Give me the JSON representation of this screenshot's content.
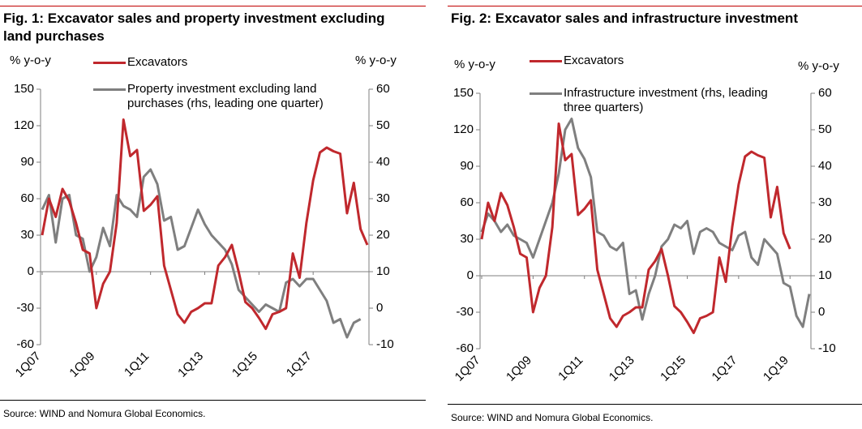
{
  "chart_data": [
    {
      "type": "line",
      "title": "Fig. 1: Excavator sales and property investment excluding land purchases",
      "y_label": "% y-o-y",
      "y2_label": "% y-o-y",
      "categories": [
        "1Q07",
        null,
        null,
        null,
        null,
        null,
        null,
        null,
        "1Q09",
        null,
        null,
        null,
        null,
        null,
        null,
        null,
        "1Q11",
        null,
        null,
        null,
        null,
        null,
        null,
        null,
        "1Q13",
        null,
        null,
        null,
        null,
        null,
        null,
        null,
        "1Q15",
        null,
        null,
        null,
        null,
        null,
        null,
        null,
        "1Q17",
        null,
        null,
        null,
        null,
        null,
        null,
        null,
        null
      ],
      "series": [
        {
          "name": "Excavators",
          "color": "#c0282d",
          "values": [
            30,
            60,
            45,
            68,
            58,
            40,
            18,
            15,
            -30,
            -10,
            0,
            40,
            125,
            95,
            100,
            50,
            55,
            62,
            5,
            -15,
            -35,
            -42,
            -33,
            -30,
            -26,
            -26,
            5,
            12,
            22,
            0,
            -25,
            -30,
            -38,
            -47,
            -35,
            -33,
            -30,
            15,
            -5,
            40,
            75,
            98,
            102,
            99,
            97,
            48,
            73,
            35,
            22
          ]
        },
        {
          "name": "Property investment excluding land purchases (rhs, leading one quarter)",
          "color": "#7f7f7f",
          "axis": "y2",
          "values": [
            27,
            31,
            18,
            30,
            31,
            20,
            19,
            10,
            14,
            22,
            17,
            31,
            28,
            27,
            25,
            36,
            38,
            34,
            24,
            25,
            16,
            17,
            22,
            27,
            23,
            20,
            18,
            16,
            12,
            5,
            3,
            1,
            -1,
            1,
            0,
            -1,
            7,
            8,
            6,
            8,
            8,
            5,
            2,
            -4,
            -3,
            -8,
            -4,
            -3,
            null
          ]
        }
      ],
      "ylim": [
        -60,
        150
      ],
      "yticks": [
        -60,
        -30,
        0,
        30,
        60,
        90,
        120,
        150
      ],
      "y2lim": [
        -10,
        60
      ],
      "y2ticks": [
        -10,
        0,
        10,
        20,
        30,
        40,
        50,
        60
      ],
      "source": "Source: WIND and Nomura Global Economics."
    },
    {
      "type": "line",
      "title": "Fig. 2: Excavator sales and infrastructure investment",
      "y_label": "% y-o-y",
      "y2_label": "% y-o-y",
      "categories": [
        "1Q07",
        null,
        null,
        null,
        null,
        null,
        null,
        null,
        "1Q09",
        null,
        null,
        null,
        null,
        null,
        null,
        null,
        "1Q11",
        null,
        null,
        null,
        null,
        null,
        null,
        null,
        "1Q13",
        null,
        null,
        null,
        null,
        null,
        null,
        null,
        "1Q15",
        null,
        null,
        null,
        null,
        null,
        null,
        null,
        "1Q17",
        null,
        null,
        null,
        null,
        null,
        null,
        null,
        "1Q19",
        null,
        null,
        null
      ],
      "series": [
        {
          "name": "Excavators",
          "color": "#c0282d",
          "values": [
            30,
            60,
            45,
            68,
            58,
            40,
            18,
            15,
            -30,
            -10,
            0,
            40,
            125,
            95,
            100,
            50,
            55,
            62,
            5,
            -15,
            -35,
            -42,
            -33,
            -30,
            -26,
            -26,
            5,
            12,
            22,
            0,
            -25,
            -30,
            -38,
            -47,
            -35,
            -33,
            -30,
            15,
            -5,
            40,
            75,
            98,
            102,
            99,
            97,
            48,
            73,
            35,
            22,
            null,
            null,
            null
          ]
        },
        {
          "name": "Infrastructure investment (rhs, leading three quarters)",
          "color": "#7f7f7f",
          "axis": "y2",
          "values": [
            22,
            27,
            25,
            22,
            24,
            21,
            20,
            19,
            15,
            20,
            25,
            30,
            38,
            50,
            53,
            45,
            42,
            37,
            22,
            21,
            18,
            17,
            19,
            5,
            6,
            -2,
            5,
            10,
            18,
            20,
            24,
            23,
            25,
            16,
            22,
            23,
            22,
            19,
            18,
            17,
            21,
            22,
            15,
            13,
            20,
            18,
            16,
            8,
            7,
            -1,
            -4,
            5
          ]
        }
      ],
      "ylim": [
        -60,
        150
      ],
      "yticks": [
        -60,
        -30,
        0,
        30,
        60,
        90,
        120,
        150
      ],
      "y2lim": [
        -10,
        60
      ],
      "y2ticks": [
        -10,
        0,
        10,
        20,
        30,
        40,
        50,
        60
      ],
      "source": "Source: WIND and Nomura Global Economics."
    }
  ]
}
